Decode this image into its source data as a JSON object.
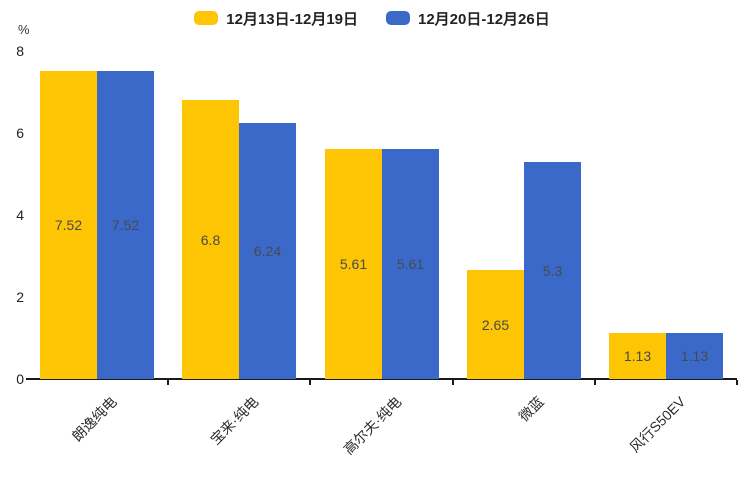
{
  "chart_data": {
    "type": "bar",
    "title": "",
    "unit_label": "%",
    "categories": [
      "朗逸纯电",
      "宝来·纯电",
      "高尔夫·纯电",
      "微蓝",
      "风行S50EV"
    ],
    "series": [
      {
        "name": "12月13日-12月19日",
        "color": "#FDC504",
        "values": [
          7.52,
          6.8,
          5.61,
          2.65,
          1.13
        ]
      },
      {
        "name": "12月20日-12月26日",
        "color": "#3A69CA",
        "values": [
          7.52,
          6.24,
          5.61,
          5.3,
          1.13
        ]
      }
    ],
    "value_labels": [
      [
        "7.52",
        "6.8",
        "5.61",
        "2.65",
        "1.13"
      ],
      [
        "7.52",
        "6.24",
        "5.61",
        "5.3",
        "1.13"
      ]
    ],
    "ylim": [
      0,
      8
    ],
    "yticks": [
      0,
      2,
      4,
      6,
      8
    ],
    "grid": false,
    "legend_position": "top",
    "xlabel": "",
    "ylabel": "%",
    "colors": {
      "axis": "#1a1a1a",
      "text": "#222222",
      "value_label": "#4a4a4a"
    }
  }
}
